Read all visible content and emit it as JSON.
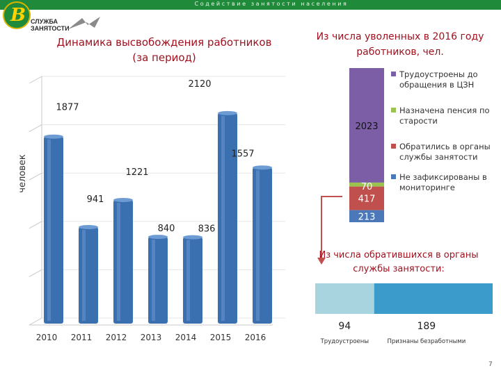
{
  "header": {
    "banner_text": "Содействие занятости населения",
    "logo_mark": "В",
    "logo_text_line1": "СЛУЖБА",
    "logo_text_line2": "ЗАНЯТОСТИ"
  },
  "colors": {
    "banner": "#1f8a3a",
    "title": "#a0101e",
    "bar": "#3a6fb0",
    "employed": "#7b5ea6",
    "pension": "#9bc34f",
    "applied": "#c0504d",
    "not_recorded": "#4a78b8",
    "employed_light": "#a8d4e0",
    "unemployed_blue": "#3b9ccc"
  },
  "main_chart": {
    "title_line1": "Динамика высвобождения работников",
    "title_line2": "(за период)",
    "ylabel": "человек"
  },
  "side_chart": {
    "title_line1": "Из числа уволенных в 2016 году",
    "title_line2": "работников, чел."
  },
  "bottom_chart": {
    "title_line1": "Из числа обратившихся в органы",
    "title_line2": "службы занятости:"
  },
  "footer": {
    "page_number": "7"
  },
  "chart_data": [
    {
      "type": "bar",
      "title": "Динамика высвобождения работников (за период)",
      "xlabel": "",
      "ylabel": "человек",
      "categories": [
        "2010",
        "2011",
        "2012",
        "2013",
        "2014",
        "2015",
        "2016"
      ],
      "values": [
        1877,
        941,
        1221,
        840,
        836,
        2120,
        1557
      ],
      "ylim": [
        0,
        2500
      ],
      "grid": true
    },
    {
      "type": "bar",
      "title": "Из числа уволенных в 2016 году работников, чел.",
      "stacked": true,
      "series": [
        {
          "name": "Трудоустроены до обращения в ЦЗН",
          "values": [
            2023
          ]
        },
        {
          "name": "Назначена пенсия по старости",
          "values": [
            70
          ]
        },
        {
          "name": "Обратились в органы службы занятости",
          "values": [
            417
          ]
        },
        {
          "name": "Не зафиксированы в мониторинге",
          "values": [
            213
          ]
        }
      ],
      "legend_position": "right"
    },
    {
      "type": "bar",
      "title": "Из числа обратившихся в органы службы занятости:",
      "orientation": "horizontal",
      "stacked": true,
      "categories": [
        "Трудоустроены",
        "Признаны безработными"
      ],
      "values": [
        94,
        189
      ]
    }
  ]
}
